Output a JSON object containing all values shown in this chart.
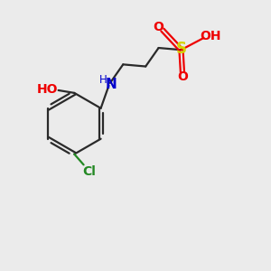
{
  "background_color": "#ebebeb",
  "bond_color": "#2a2a2a",
  "bond_width": 1.6,
  "atom_colors": {
    "S": "#d4d400",
    "O": "#ee0000",
    "N": "#0000cc",
    "Cl": "#228822",
    "H": "#555555",
    "C": "#2a2a2a"
  },
  "label_fontsize": 10,
  "label_fontsize_small": 8.5
}
